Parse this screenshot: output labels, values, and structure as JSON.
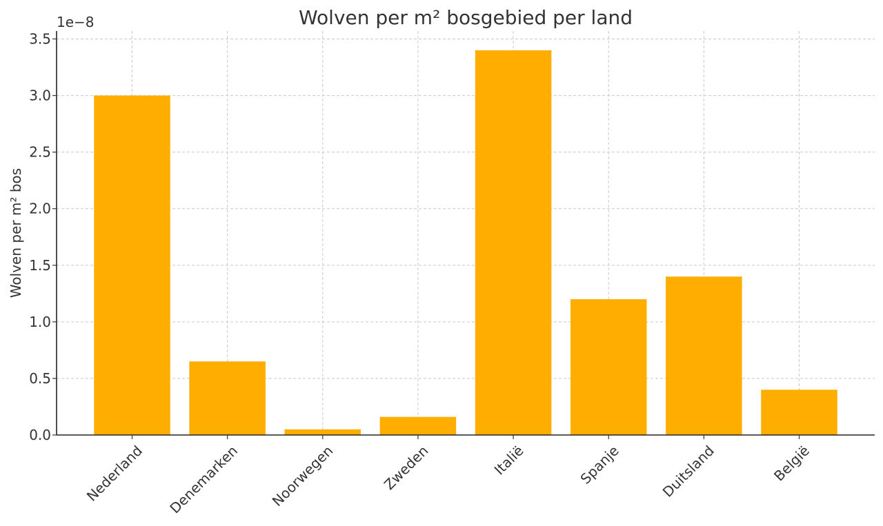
{
  "chart_data": {
    "type": "bar",
    "title": "Wolven per m² bosgebied per land",
    "xlabel": "",
    "ylabel": "Wolven per m² bos",
    "offset_text": "1e−8",
    "categories": [
      "Nederland",
      "Denemarken",
      "Noorwegen",
      "Zweden",
      "Italië",
      "Spanje",
      "Duitsland",
      "België"
    ],
    "values": [
      3e-08,
      6.5e-09,
      5e-10,
      1.6e-09,
      3.4e-08,
      1.2e-08,
      1.4e-08,
      4e-09
    ],
    "ylim": [
      0,
      3.57e-08
    ],
    "yticks": [
      0,
      5e-09,
      1e-08,
      1.5e-08,
      2e-08,
      2.5e-08,
      3e-08,
      3.5e-08
    ],
    "ytick_labels": [
      "0.0",
      "0.5",
      "1.0",
      "1.5",
      "2.0",
      "2.5",
      "3.0",
      "3.5"
    ],
    "grid": true,
    "bar_color": "#ffae00"
  }
}
